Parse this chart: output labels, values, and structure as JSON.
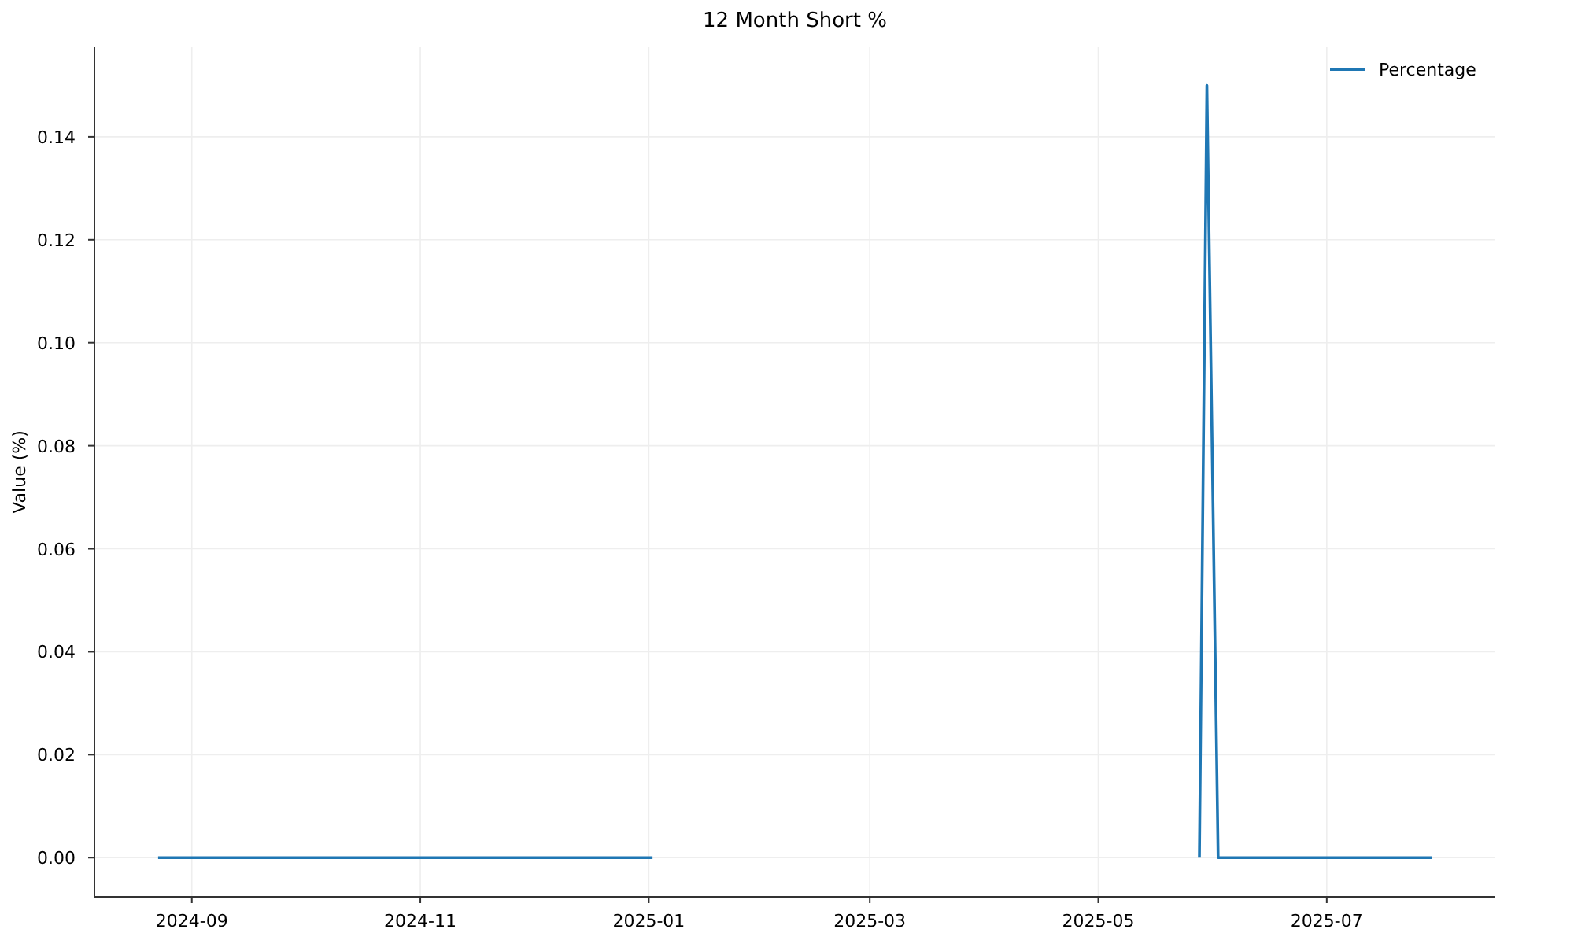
{
  "chart_data": {
    "type": "line",
    "title": "12 Month Short %",
    "ylabel": "Value (%)",
    "x": [
      "2024-08-23",
      "2025-01-02",
      "2025-01-03",
      "2025-05-28",
      "2025-05-30",
      "2025-06-02",
      "2025-07-29"
    ],
    "series": [
      {
        "name": "Percentage",
        "color": "#1f77b4",
        "values": [
          0,
          0,
          null,
          0,
          0.15,
          0,
          0
        ]
      }
    ],
    "xlim": [
      "2024-08-06",
      "2025-08-15"
    ],
    "xticks": [
      {
        "value": "2024-09-01",
        "label": "2024-09"
      },
      {
        "value": "2024-11-01",
        "label": "2024-11"
      },
      {
        "value": "2025-01-01",
        "label": "2025-01"
      },
      {
        "value": "2025-03-01",
        "label": "2025-03"
      },
      {
        "value": "2025-05-01",
        "label": "2025-05"
      },
      {
        "value": "2025-07-01",
        "label": "2025-07"
      }
    ],
    "ylim": [
      -0.0076,
      0.1574
    ],
    "yticks": [
      {
        "value": 0,
        "label": "0.00"
      },
      0.02,
      0.04,
      0.06,
      0.08,
      {
        "value": 0.1,
        "label": "0.10"
      },
      0.12,
      0.14
    ],
    "grid": true,
    "legend": "top right",
    "line_style": "solid",
    "marker": "none"
  }
}
